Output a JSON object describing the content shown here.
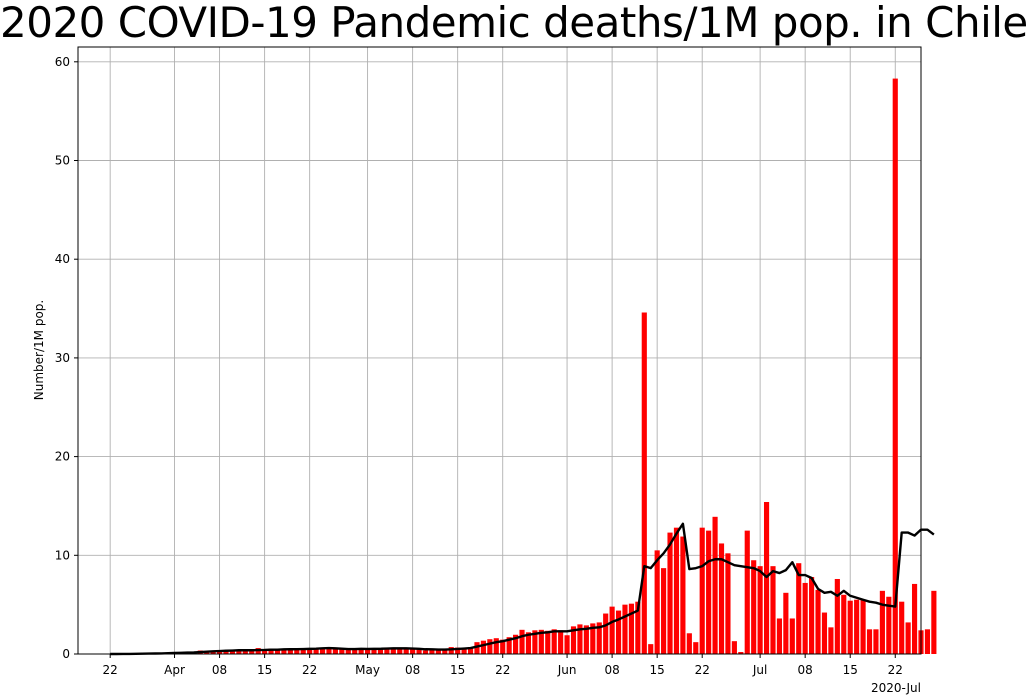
{
  "chart_data": {
    "type": "bar",
    "title": "2020 COVID-19 Pandemic deaths/1M pop. in Chile",
    "ylabel": "Number/1M pop.",
    "xlabel": "",
    "ylim": [
      0,
      61.5
    ],
    "yticks": [
      0,
      10,
      20,
      30,
      40,
      50,
      60
    ],
    "xlim": [
      "2020-03-17",
      "2020-07-26"
    ],
    "xticks": [
      {
        "date": "2020-03-22",
        "label": "22"
      },
      {
        "date": "2020-04-01",
        "label": "Apr"
      },
      {
        "date": "2020-04-08",
        "label": "08"
      },
      {
        "date": "2020-04-15",
        "label": "15"
      },
      {
        "date": "2020-04-22",
        "label": "22"
      },
      {
        "date": "2020-05-01",
        "label": "May"
      },
      {
        "date": "2020-05-08",
        "label": "08"
      },
      {
        "date": "2020-05-15",
        "label": "15"
      },
      {
        "date": "2020-05-22",
        "label": "22"
      },
      {
        "date": "2020-06-01",
        "label": "Jun"
      },
      {
        "date": "2020-06-08",
        "label": "08"
      },
      {
        "date": "2020-06-15",
        "label": "15"
      },
      {
        "date": "2020-06-22",
        "label": "22"
      },
      {
        "date": "2020-07-01",
        "label": "Jul"
      },
      {
        "date": "2020-07-08",
        "label": "08"
      },
      {
        "date": "2020-07-15",
        "label": "15"
      },
      {
        "date": "2020-07-22",
        "label": "22"
      }
    ],
    "x_offset_label": "2020-Jul",
    "grid": true,
    "series": [
      {
        "type": "bar",
        "color": "#ff0000",
        "start_date": "2020-03-22",
        "values": [
          0.0,
          0.0,
          0.05,
          0.05,
          0.05,
          0.05,
          0.1,
          0.1,
          0.1,
          0.15,
          0.15,
          0.2,
          0.2,
          0.2,
          0.35,
          0.3,
          0.35,
          0.35,
          0.4,
          0.4,
          0.4,
          0.45,
          0.3,
          0.6,
          0.5,
          0.55,
          0.45,
          0.55,
          0.5,
          0.55,
          0.5,
          0.6,
          0.55,
          0.6,
          0.7,
          0.55,
          0.5,
          0.5,
          0.5,
          0.55,
          0.5,
          0.55,
          0.5,
          0.6,
          0.65,
          0.6,
          0.6,
          0.5,
          0.45,
          0.35,
          0.5,
          0.45,
          0.5,
          0.7,
          0.65,
          0.6,
          0.7,
          1.2,
          1.35,
          1.5,
          1.6,
          1.45,
          1.7,
          1.95,
          2.45,
          2.2,
          2.4,
          2.45,
          2.35,
          2.5,
          2.4,
          1.9,
          2.8,
          3.0,
          2.9,
          3.1,
          3.2,
          4.1,
          4.8,
          4.4,
          5.0,
          5.1,
          5.3,
          34.6,
          1.0,
          10.5,
          8.7,
          12.3,
          12.8,
          11.9,
          2.1,
          1.2,
          12.8,
          12.5,
          13.9,
          11.2,
          10.2,
          1.3,
          0.2,
          12.5,
          9.5,
          8.9,
          15.4,
          8.9,
          3.6,
          6.2,
          3.6,
          9.2,
          7.2,
          7.8,
          6.5,
          4.2,
          2.7,
          7.6,
          6.0,
          5.4,
          5.5,
          5.5,
          2.5,
          2.5,
          6.4,
          5.8,
          58.3,
          5.3,
          3.2,
          7.1,
          2.4,
          2.5,
          6.4
        ]
      },
      {
        "type": "line",
        "color": "#000000",
        "start_date": "2020-03-22",
        "values": [
          0.0,
          0.0,
          0.01,
          0.01,
          0.02,
          0.03,
          0.04,
          0.05,
          0.06,
          0.08,
          0.1,
          0.12,
          0.14,
          0.16,
          0.2,
          0.23,
          0.27,
          0.3,
          0.33,
          0.35,
          0.38,
          0.39,
          0.38,
          0.4,
          0.41,
          0.44,
          0.44,
          0.47,
          0.48,
          0.49,
          0.5,
          0.52,
          0.54,
          0.58,
          0.6,
          0.57,
          0.54,
          0.5,
          0.5,
          0.52,
          0.51,
          0.52,
          0.53,
          0.55,
          0.57,
          0.57,
          0.57,
          0.55,
          0.53,
          0.48,
          0.47,
          0.45,
          0.45,
          0.47,
          0.51,
          0.55,
          0.6,
          0.75,
          0.9,
          1.05,
          1.2,
          1.3,
          1.45,
          1.6,
          1.8,
          1.95,
          2.05,
          2.15,
          2.2,
          2.3,
          2.3,
          2.3,
          2.4,
          2.5,
          2.55,
          2.65,
          2.7,
          2.9,
          3.25,
          3.5,
          3.8,
          4.1,
          4.4,
          8.9,
          8.7,
          9.5,
          10.2,
          11.1,
          12.2,
          13.2,
          8.6,
          8.7,
          8.9,
          9.4,
          9.6,
          9.6,
          9.3,
          9.0,
          8.9,
          8.8,
          8.7,
          8.4,
          7.8,
          8.4,
          8.2,
          8.5,
          9.3,
          8.0,
          8.0,
          7.7,
          6.6,
          6.2,
          6.3,
          5.9,
          6.4,
          5.9,
          5.7,
          5.5,
          5.3,
          5.2,
          5.0,
          4.9,
          4.8,
          12.3,
          12.3,
          12.0,
          12.6,
          12.6,
          12.1
        ]
      }
    ]
  }
}
